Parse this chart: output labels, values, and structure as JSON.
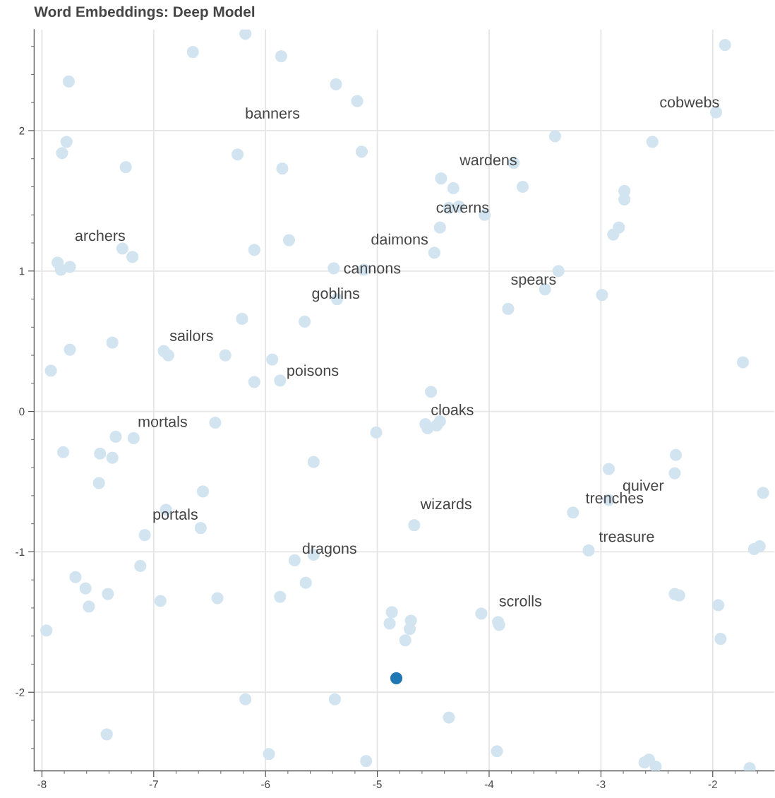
{
  "chart_data": {
    "type": "scatter",
    "title": "Word Embeddings: Deep Model",
    "marker": "circle",
    "grid": true,
    "xlim": [
      -8.07,
      -1.45
    ],
    "ylim": [
      -2.56,
      2.72
    ],
    "xticks": [
      -8,
      -7,
      -6,
      -5,
      -4,
      -3,
      -2
    ],
    "yticks": [
      -2,
      -1,
      0,
      1,
      2
    ],
    "series": [
      {
        "color": "#d3e4f1",
        "x": [
          -6.18,
          -6.65,
          -5.86,
          -1.89,
          -7.76,
          -5.37,
          -5.18,
          -1.97,
          -7.78,
          -7.82,
          -6.25,
          -5.14,
          -3.41,
          -2.54,
          -7.25,
          -5.85,
          -3.78,
          -4.43,
          -4.32,
          -4.27,
          -4.36,
          -3.7,
          -4.04,
          -2.79,
          -2.79,
          -2.89,
          -2.84,
          -4.44,
          -4.49,
          -5.79,
          -6.1,
          -7.28,
          -7.19,
          -7.86,
          -7.83,
          -7.75,
          -5.39,
          -5.12,
          -3.38,
          -3.5,
          -2.99,
          -3.83,
          -5.36,
          -6.21,
          -5.65,
          -7.37,
          -7.75,
          -6.91,
          -6.87,
          -6.36,
          -5.94,
          -7.92,
          -6.1,
          -5.87,
          -1.73,
          -4.52,
          -6.45,
          -5.01,
          -4.57,
          -4.55,
          -4.47,
          -4.44,
          -7.34,
          -7.18,
          -7.81,
          -7.48,
          -7.37,
          -5.57,
          -2.33,
          -2.93,
          -2.34,
          -7.49,
          -6.56,
          -2.93,
          -3.25,
          -1.55,
          -6.89,
          -6.58,
          -7.08,
          -4.67,
          -3.11,
          -1.63,
          -1.58,
          -5.57,
          -5.74,
          -7.12,
          -7.7,
          -7.61,
          -7.41,
          -5.64,
          -7.58,
          -6.94,
          -6.43,
          -5.87,
          -2.34,
          -2.3,
          -1.95,
          -4.87,
          -4.7,
          -4.89,
          -4.71,
          -4.75,
          -4.07,
          -3.92,
          -3.91,
          -1.93,
          -7.96,
          -6.18,
          -5.38,
          -4.36,
          -7.42,
          -5.97,
          -5.1,
          -3.93,
          -2.61,
          -2.57,
          -2.51,
          -1.67
        ],
        "values": [
          2.69,
          2.56,
          2.53,
          2.61,
          2.35,
          2.33,
          2.21,
          2.13,
          1.92,
          1.84,
          1.83,
          1.85,
          1.96,
          1.92,
          1.74,
          1.73,
          1.77,
          1.66,
          1.59,
          1.46,
          1.45,
          1.6,
          1.4,
          1.57,
          1.51,
          1.26,
          1.31,
          1.31,
          1.13,
          1.22,
          1.15,
          1.16,
          1.1,
          1.06,
          1.01,
          1.03,
          1.02,
          1.01,
          1.0,
          0.87,
          0.83,
          0.73,
          0.8,
          0.66,
          0.64,
          0.49,
          0.44,
          0.43,
          0.4,
          0.4,
          0.37,
          0.29,
          0.21,
          0.22,
          0.35,
          0.14,
          -0.08,
          -0.15,
          -0.09,
          -0.12,
          -0.1,
          -0.07,
          -0.18,
          -0.19,
          -0.29,
          -0.3,
          -0.33,
          -0.36,
          -0.31,
          -0.41,
          -0.44,
          -0.51,
          -0.57,
          -0.63,
          -0.72,
          -0.58,
          -0.7,
          -0.83,
          -0.88,
          -0.81,
          -0.99,
          -0.98,
          -0.96,
          -1.02,
          -1.06,
          -1.1,
          -1.18,
          -1.26,
          -1.3,
          -1.22,
          -1.39,
          -1.35,
          -1.33,
          -1.32,
          -1.3,
          -1.31,
          -1.38,
          -1.43,
          -1.49,
          -1.51,
          -1.55,
          -1.63,
          -1.44,
          -1.5,
          -1.52,
          -1.62,
          -1.56,
          -2.05,
          -2.05,
          -2.18,
          -2.3,
          -2.44,
          -2.49,
          -2.42,
          -2.5,
          -2.48,
          -2.53,
          -2.54
        ]
      },
      {
        "color": "#1f77b4",
        "x": [
          -4.83
        ],
        "values": [
          -1.9
        ]
      }
    ],
    "annotations": [
      "banners",
      "cobwebs",
      "wardens",
      "caverns",
      "archers",
      "daimons",
      "cannons",
      "spears",
      "goblins",
      "sailors",
      "poisons",
      "cloaks",
      "mortals",
      "quiver",
      "trenches",
      "wizards",
      "portals",
      "treasure",
      "dragons",
      "scrolls"
    ]
  }
}
